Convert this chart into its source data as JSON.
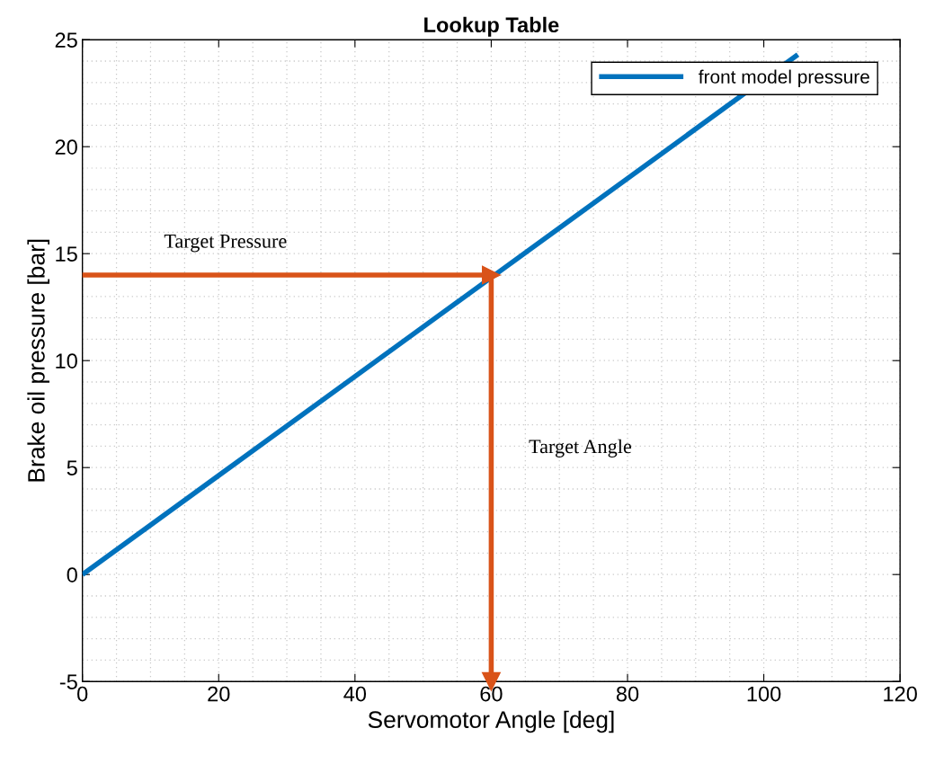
{
  "chart_data": {
    "type": "line",
    "title": "Lookup Table",
    "xlabel": "Servomotor Angle [deg]",
    "ylabel": "Brake oil pressure [bar]",
    "series": [
      {
        "name": "front model pressure",
        "color": "#0072bd",
        "x": [
          0,
          105
        ],
        "values": [
          0,
          24.3
        ]
      }
    ],
    "xlim": [
      0,
      120
    ],
    "xticks": [
      0,
      20,
      40,
      60,
      80,
      100,
      120
    ],
    "ylim": [
      -5,
      25
    ],
    "yticks": [
      -5,
      0,
      5,
      10,
      15,
      20,
      25
    ],
    "ref_lines": [
      {
        "axis": "y",
        "value": 14,
        "label": "Target Pressure",
        "color": "#d95319"
      },
      {
        "axis": "x",
        "value": 60,
        "label": "Target Angle",
        "color": "#d95319"
      }
    ],
    "grid": true,
    "legend": "top right"
  }
}
